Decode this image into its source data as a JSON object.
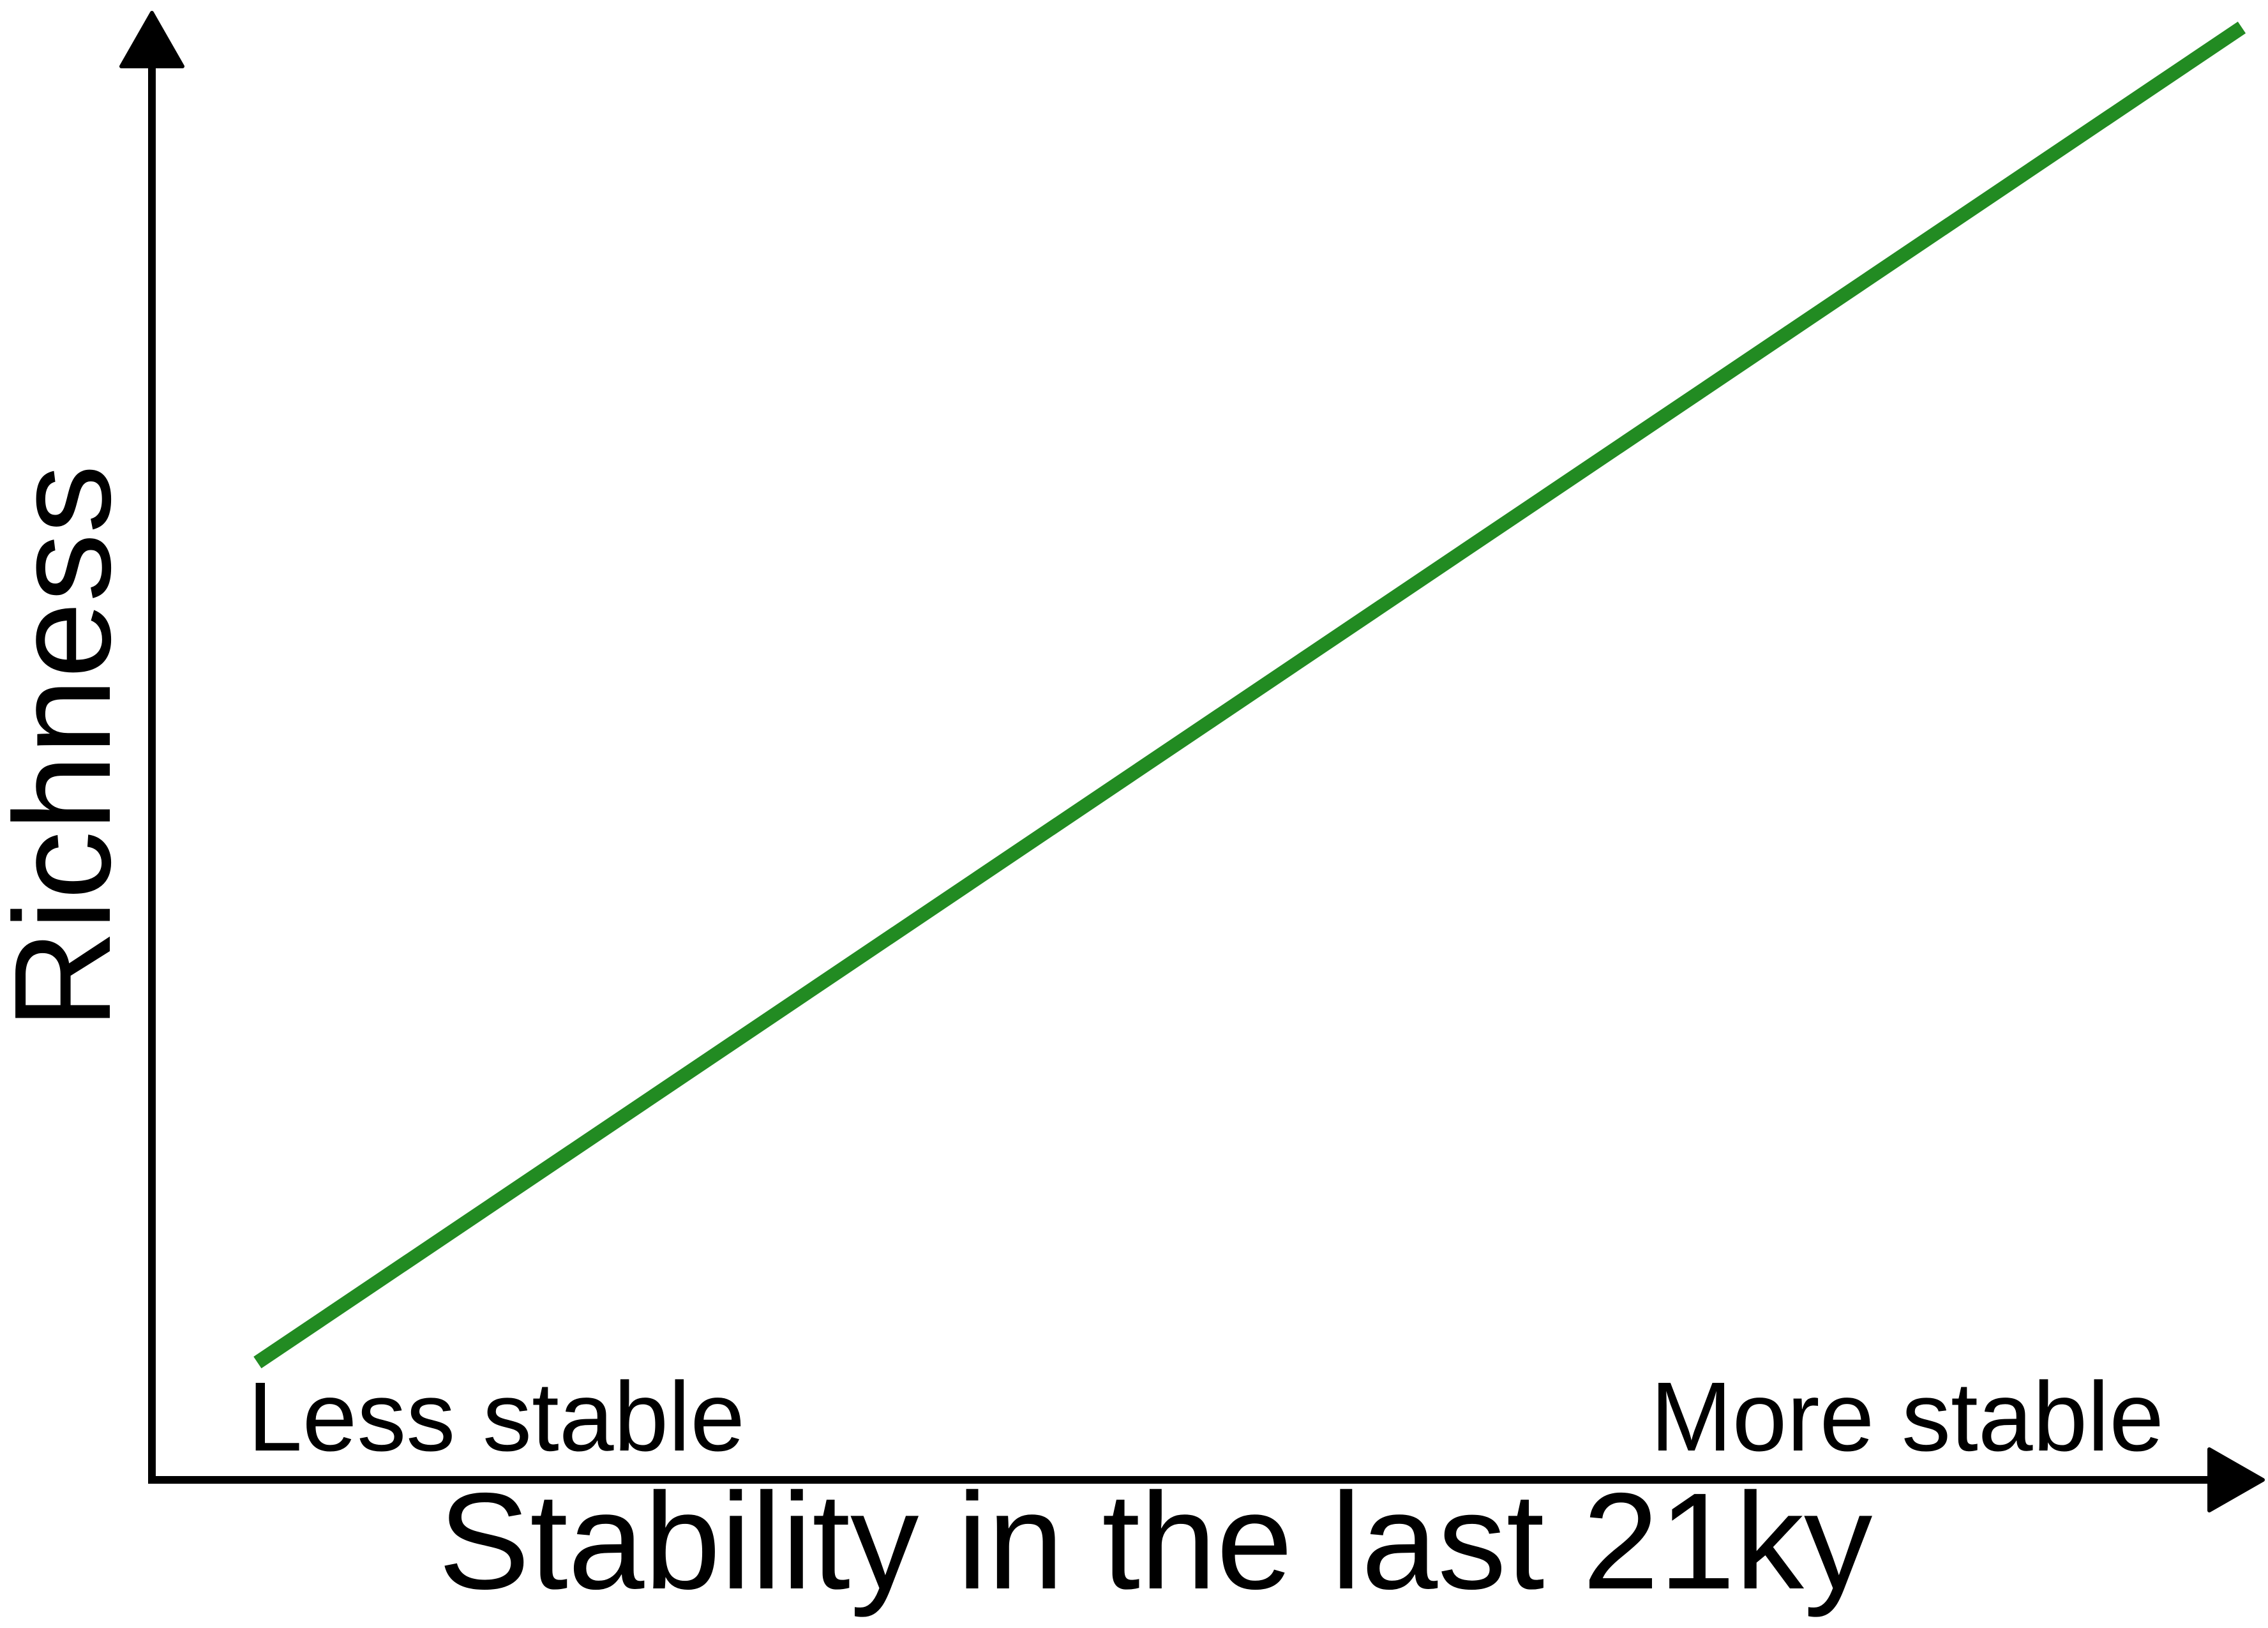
{
  "chart_data": {
    "type": "line",
    "title": "",
    "xlabel": "Stability in the last 21ky",
    "ylabel": "Richness",
    "x_tick_labels": {
      "low": "Less stable",
      "high": "More stable"
    },
    "series": [
      {
        "color": "#228b22",
        "x": [
          0.05,
          0.99
        ],
        "y": [
          0.08,
          0.99
        ]
      }
    ],
    "xlim": [
      0,
      1
    ],
    "ylim": [
      0,
      1
    ],
    "grid": false,
    "legend": "none",
    "axis_color": "#000000"
  }
}
